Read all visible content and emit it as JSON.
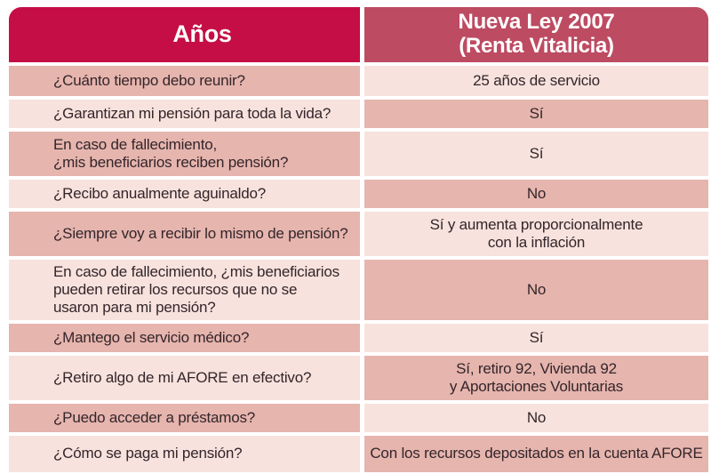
{
  "colors": {
    "header_left_bg": "#c50e45",
    "header_right_bg": "#bd4b62",
    "row_dark": "#e6b5ae",
    "row_light": "#f7e2dd",
    "text": "#33252a",
    "header_text": "#ffffff",
    "page_bg": "#ffffff"
  },
  "table": {
    "header": {
      "col1": "Años",
      "col2": "Nueva Ley 2007\n(Renta Vitalicia)"
    },
    "rows": [
      {
        "question": "¿Cuánto tiempo debo reunir?",
        "answer": "25 años de servicio"
      },
      {
        "question": "¿Garantizan mi pensión para toda la vida?",
        "answer": "Sí"
      },
      {
        "question": "En caso de fallecimiento,\n¿mis beneficiarios reciben pensión?",
        "answer": "Sí"
      },
      {
        "question": "¿Recibo anualmente aguinaldo?",
        "answer": "No"
      },
      {
        "question": "¿Siempre voy a recibir lo mismo de pensión?",
        "answer": "Sí y aumenta proporcionalmente\ncon la inflación"
      },
      {
        "question": "En caso de fallecimiento, ¿mis beneficiarios\npueden retirar los recursos que no se\nusaron para mi pensión?",
        "answer": "No"
      },
      {
        "question": "¿Mantego el servicio médico?",
        "answer": "Sí"
      },
      {
        "question": "¿Retiro algo de mi AFORE en efectivo?",
        "answer": "Sí, retiro 92, Vivienda 92\ny Aportaciones Voluntarias"
      },
      {
        "question": "¿Puedo acceder a préstamos?",
        "answer": "No"
      },
      {
        "question": "¿Cómo se paga mi pensión?",
        "answer": "Con los recursos depositados en la cuenta AFORE"
      }
    ]
  },
  "chart_data": {
    "type": "table",
    "title": "",
    "columns": [
      "Años",
      "Nueva Ley 2007 (Renta Vitalicia)"
    ],
    "rows": [
      [
        "¿Cuánto tiempo debo reunir?",
        "25 años de servicio"
      ],
      [
        "¿Garantizan mi pensión para toda la vida?",
        "Sí"
      ],
      [
        "En caso de fallecimiento, ¿mis beneficiarios reciben pensión?",
        "Sí"
      ],
      [
        "¿Recibo anualmente aguinaldo?",
        "No"
      ],
      [
        "¿Siempre voy a recibir lo mismo de pensión?",
        "Sí y aumenta proporcionalmente con la inflación"
      ],
      [
        "En caso de fallecimiento, ¿mis beneficiarios pueden retirar los recursos que no se usaron para mi pensión?",
        "No"
      ],
      [
        "¿Mantego el servicio médico?",
        "Sí"
      ],
      [
        "¿Retiro algo de mi AFORE en efectivo?",
        "Sí, retiro 92, Vivienda 92 y Aportaciones Voluntarias"
      ],
      [
        "¿Puedo acceder a préstamos?",
        "No"
      ],
      [
        "¿Cómo se paga mi pensión?",
        "Con los recursos depositados en la cuenta AFORE"
      ]
    ],
    "layout_hints": {
      "header_style": "dark crimson left / rose right, white bold text, rounded top corners",
      "body_style": "checkerboard alternating dusty-rose (#e6b5ae) and pale-pink (#f7e2dd) cells",
      "question_alignment": "left",
      "answer_alignment": "center"
    }
  }
}
